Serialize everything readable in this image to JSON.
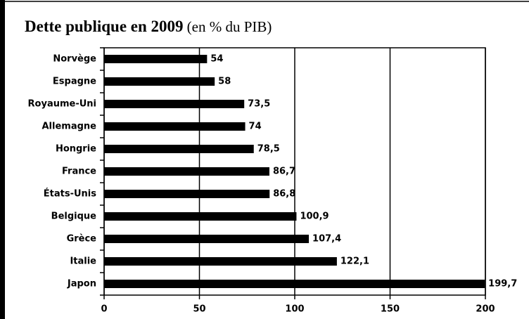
{
  "chart_data": {
    "type": "bar",
    "orientation": "horizontal",
    "title": "Dette publique en 2009",
    "subtitle": "(en % du PIB)",
    "categories": [
      "Norvège",
      "Espagne",
      "Royaume-Uni",
      "Allemagne",
      "Hongrie",
      "France",
      "États-Unis",
      "Belgique",
      "Grèce",
      "Italie",
      "Japon"
    ],
    "values": [
      54,
      58,
      73.5,
      74,
      78.5,
      86.7,
      86.8,
      100.9,
      107.4,
      122.1,
      199.7
    ],
    "value_labels": [
      "54",
      "58",
      "73,5",
      "74",
      "78,5",
      "86,7",
      "86,8",
      "100,9",
      "107,4",
      "122,1",
      "199,7"
    ],
    "color": "#000000",
    "xlim": [
      0,
      200
    ],
    "xticks": [
      0,
      50,
      100,
      150,
      200
    ],
    "grid": true
  }
}
